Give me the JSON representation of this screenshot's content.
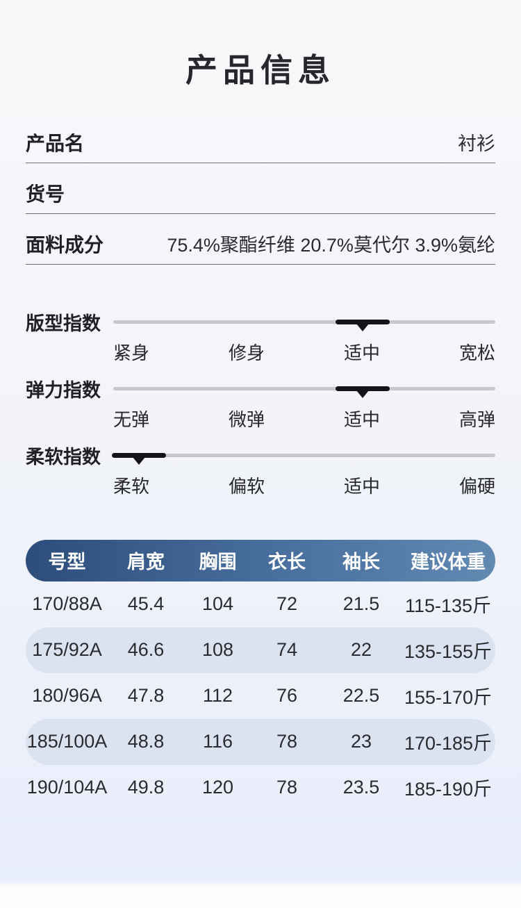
{
  "title": "产品信息",
  "fields": [
    {
      "label": "产品名",
      "value": "衬衫"
    },
    {
      "label": "货号",
      "value": ""
    },
    {
      "label": "面料成分",
      "value": "75.4%聚酯纤维 20.7%莫代尔 3.9%氨纶"
    }
  ],
  "sliders": [
    {
      "label": "版型指数",
      "stops": [
        "紧身",
        "修身",
        "适中",
        "宽松"
      ],
      "active_index": 2,
      "active_stop": "适中"
    },
    {
      "label": "弹力指数",
      "stops": [
        "无弹",
        "微弹",
        "适中",
        "高弹"
      ],
      "active_index": 2,
      "active_stop": "适中"
    },
    {
      "label": "柔软指数",
      "stops": [
        "柔软",
        "偏软",
        "适中",
        "偏硬"
      ],
      "active_index": 0,
      "active_stop": "柔软"
    }
  ],
  "size_table": {
    "headers": [
      "号型",
      "肩宽",
      "胸围",
      "衣长",
      "袖长",
      "建议体重"
    ],
    "rows": [
      [
        "170/88A",
        "45.4",
        "104",
        "72",
        "21.5",
        "115-135斤"
      ],
      [
        "175/92A",
        "46.6",
        "108",
        "74",
        "22",
        "135-155斤"
      ],
      [
        "180/96A",
        "47.8",
        "112",
        "76",
        "22.5",
        "155-170斤"
      ],
      [
        "185/100A",
        "48.8",
        "116",
        "78",
        "23",
        "170-185斤"
      ],
      [
        "190/104A",
        "49.8",
        "120",
        "78",
        "23.5",
        "185-190斤"
      ]
    ]
  },
  "colors": {
    "page_bg_top": "#f8f8fa",
    "page_bg_bottom": "#e9eefc",
    "header_gradient_start": "#2d4d7b",
    "header_gradient_end": "#6289b2",
    "header_text": "#ffffff",
    "row_shade": "#dbe2f0",
    "slider_track": "#c7c7cd",
    "slider_marker": "#141519",
    "text_primary": "#26262c",
    "field_rule": "#6e6e76"
  }
}
